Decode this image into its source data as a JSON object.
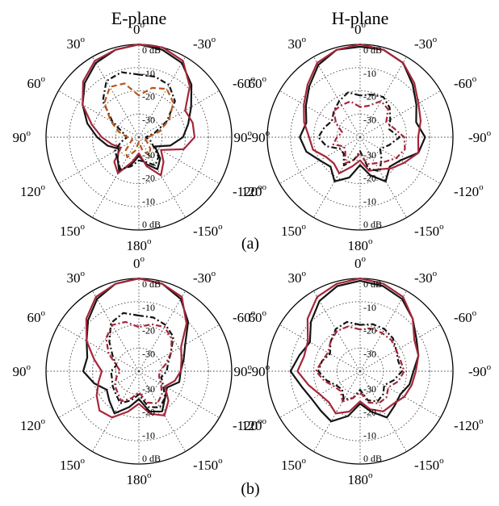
{
  "figure": {
    "column_titles": [
      "E-plane",
      "H-plane"
    ],
    "row_labels": [
      "(a)",
      "(b)"
    ]
  },
  "polar": {
    "angle_ticks": [
      {
        "value": 0,
        "label": "0",
        "sup": "o"
      },
      {
        "value": -30,
        "label": "-30",
        "sup": "o"
      },
      {
        "value": -60,
        "label": "-60",
        "sup": "o"
      },
      {
        "value": -90,
        "label": "-90",
        "sup": "o"
      },
      {
        "value": -120,
        "label": "-120",
        "sup": "o"
      },
      {
        "value": -150,
        "label": "-150",
        "sup": "o"
      },
      {
        "value": 180,
        "label": "180",
        "sup": "o"
      },
      {
        "value": 150,
        "label": "150",
        "sup": "o"
      },
      {
        "value": 120,
        "label": "120",
        "sup": "o"
      },
      {
        "value": 90,
        "label": "90",
        "sup": "o"
      },
      {
        "value": 60,
        "label": "60",
        "sup": "o"
      },
      {
        "value": 30,
        "label": "30",
        "sup": "o"
      }
    ],
    "radial_ticks_top": [
      "0 dB",
      "-10",
      "-20",
      "-30"
    ],
    "radial_ticks_bottom": [
      "-30",
      "-20",
      "-10",
      "0 dB"
    ],
    "r_range_db": [
      -40,
      0
    ]
  },
  "colors": {
    "black": "#141414",
    "crimson": "#a5263a",
    "orange": "#b8561a",
    "grid": "#444444",
    "outer": "#000000"
  },
  "chart_data": [
    {
      "type": "polar",
      "panel": "(a)",
      "plane": "E-plane",
      "theta_deg": [
        0,
        15,
        30,
        45,
        60,
        75,
        90,
        105,
        120,
        135,
        150,
        165,
        180,
        195,
        210,
        225,
        240,
        255,
        270,
        285,
        300,
        315,
        330,
        345
      ],
      "series": [
        {
          "style": "solid",
          "color": "black",
          "values_db": [
            0,
            -1,
            -3,
            -7,
            -12,
            -17,
            -22,
            -26,
            -30,
            -27,
            -23,
            -28,
            -32,
            -28,
            -24,
            -27,
            -32,
            -26,
            -21,
            -18,
            -14,
            -8,
            -3,
            -1
          ]
        },
        {
          "style": "solid",
          "color": "crimson",
          "values_db": [
            0,
            -1,
            -2,
            -6,
            -12,
            -19,
            -24,
            -28,
            -31,
            -25,
            -22,
            -29,
            -33,
            -27,
            -21,
            -25,
            -29,
            -20,
            -16,
            -16,
            -17,
            -9,
            -2,
            0
          ]
        },
        {
          "style": "dashdot",
          "color": "black",
          "values_db": [
            -13,
            -11,
            -12,
            -18,
            -27,
            -33,
            -35,
            -32,
            -28,
            -27,
            -24,
            -27,
            -30,
            -29,
            -26,
            -28,
            -33,
            -35,
            -37,
            -33,
            -26,
            -18,
            -14,
            -13
          ]
        },
        {
          "style": "dashed",
          "color": "orange",
          "values_db": [
            -22,
            -16,
            -15,
            -19,
            -26,
            -31,
            -35,
            -37,
            -36,
            -32,
            -30,
            -34,
            -38,
            -34,
            -31,
            -33,
            -36,
            -37,
            -36,
            -31,
            -25,
            -19,
            -16,
            -18
          ]
        }
      ]
    },
    {
      "type": "polar",
      "panel": "(a)",
      "plane": "H-plane",
      "theta_deg": [
        0,
        15,
        30,
        45,
        60,
        75,
        90,
        105,
        120,
        135,
        150,
        165,
        180,
        195,
        210,
        225,
        240,
        255,
        270,
        285,
        300,
        315,
        330,
        345
      ],
      "series": [
        {
          "style": "solid",
          "color": "black",
          "values_db": [
            -1,
            -1,
            -4,
            -9,
            -13,
            -16,
            -14,
            -16,
            -20,
            -22,
            -18,
            -22,
            -28,
            -23,
            -18,
            -22,
            -20,
            -14,
            -12,
            -15,
            -12,
            -8,
            -3,
            -1
          ]
        },
        {
          "style": "solid",
          "color": "crimson",
          "values_db": [
            0,
            -1,
            -3,
            -8,
            -12,
            -15,
            -18,
            -19,
            -23,
            -24,
            -22,
            -27,
            -30,
            -25,
            -24,
            -21,
            -18,
            -14,
            -15,
            -13,
            -11,
            -7,
            -3,
            -1
          ]
        },
        {
          "style": "dashdot",
          "color": "black",
          "values_db": [
            -22,
            -20,
            -22,
            -24,
            -26,
            -24,
            -22,
            -25,
            -30,
            -30,
            -26,
            -30,
            -34,
            -26,
            -23,
            -27,
            -30,
            -27,
            -23,
            -27,
            -25,
            -22,
            -20,
            -21
          ]
        },
        {
          "style": "dashdot",
          "color": "crimson",
          "values_db": [
            -27,
            -24,
            -24,
            -24,
            -28,
            -32,
            -30,
            -28,
            -32,
            -31,
            -27,
            -30,
            -33,
            -28,
            -27,
            -25,
            -22,
            -20,
            -21,
            -25,
            -27,
            -23,
            -22,
            -26
          ]
        }
      ]
    },
    {
      "type": "polar",
      "panel": "(b)",
      "plane": "E-plane",
      "theta_deg": [
        0,
        15,
        30,
        45,
        60,
        75,
        90,
        105,
        120,
        135,
        150,
        165,
        180,
        195,
        210,
        225,
        240,
        255,
        270,
        285,
        300,
        315,
        330,
        345
      ],
      "series": [
        {
          "style": "solid",
          "color": "black",
          "values_db": [
            0,
            -1,
            -4,
            -9,
            -14,
            -17,
            -16,
            -20,
            -24,
            -22,
            -19,
            -24,
            -28,
            -22,
            -20,
            -24,
            -26,
            -22,
            -22,
            -20,
            -17,
            -10,
            -4,
            -1
          ]
        },
        {
          "style": "solid",
          "color": "crimson",
          "values_db": [
            0,
            -1,
            -3,
            -8,
            -14,
            -20,
            -24,
            -22,
            -19,
            -16,
            -17,
            -22,
            -26,
            -21,
            -18,
            -22,
            -27,
            -24,
            -22,
            -21,
            -19,
            -11,
            -3,
            -1
          ]
        },
        {
          "style": "dashdot",
          "color": "black",
          "values_db": [
            -16,
            -14,
            -16,
            -22,
            -27,
            -30,
            -28,
            -28,
            -27,
            -26,
            -24,
            -27,
            -30,
            -24,
            -22,
            -24,
            -28,
            -30,
            -28,
            -27,
            -24,
            -19,
            -17,
            -16
          ]
        },
        {
          "style": "dashdot",
          "color": "crimson",
          "values_db": [
            -21,
            -18,
            -17,
            -20,
            -25,
            -30,
            -32,
            -30,
            -28,
            -27,
            -25,
            -28,
            -31,
            -26,
            -24,
            -26,
            -29,
            -31,
            -31,
            -28,
            -24,
            -20,
            -18,
            -19
          ]
        }
      ]
    },
    {
      "type": "polar",
      "panel": "(b)",
      "plane": "H-plane",
      "theta_deg": [
        0,
        15,
        30,
        45,
        60,
        75,
        90,
        105,
        120,
        135,
        150,
        165,
        180,
        195,
        210,
        225,
        240,
        255,
        270,
        285,
        300,
        315,
        330,
        345
      ],
      "series": [
        {
          "style": "solid",
          "color": "black",
          "values_db": [
            -1,
            -2,
            -5,
            -10,
            -15,
            -13,
            -10,
            -14,
            -16,
            -16,
            -15,
            -20,
            -26,
            -22,
            -17,
            -19,
            -20,
            -18,
            -17,
            -14,
            -12,
            -8,
            -4,
            -2
          ]
        },
        {
          "style": "solid",
          "color": "crimson",
          "values_db": [
            0,
            -1,
            -3,
            -8,
            -14,
            -15,
            -13,
            -17,
            -20,
            -21,
            -19,
            -22,
            -27,
            -23,
            -20,
            -20,
            -18,
            -17,
            -16,
            -14,
            -13,
            -8,
            -3,
            -1
          ]
        },
        {
          "style": "dashdot",
          "color": "black",
          "values_db": [
            -20,
            -18,
            -19,
            -22,
            -25,
            -23,
            -22,
            -25,
            -28,
            -29,
            -26,
            -28,
            -32,
            -27,
            -25,
            -26,
            -28,
            -25,
            -22,
            -23,
            -22,
            -20,
            -19,
            -19
          ]
        },
        {
          "style": "dashdot",
          "color": "crimson",
          "values_db": [
            -22,
            -20,
            -20,
            -22,
            -24,
            -23,
            -21,
            -24,
            -27,
            -28,
            -25,
            -28,
            -31,
            -26,
            -24,
            -24,
            -26,
            -23,
            -21,
            -22,
            -22,
            -21,
            -21,
            -21
          ]
        }
      ]
    }
  ]
}
